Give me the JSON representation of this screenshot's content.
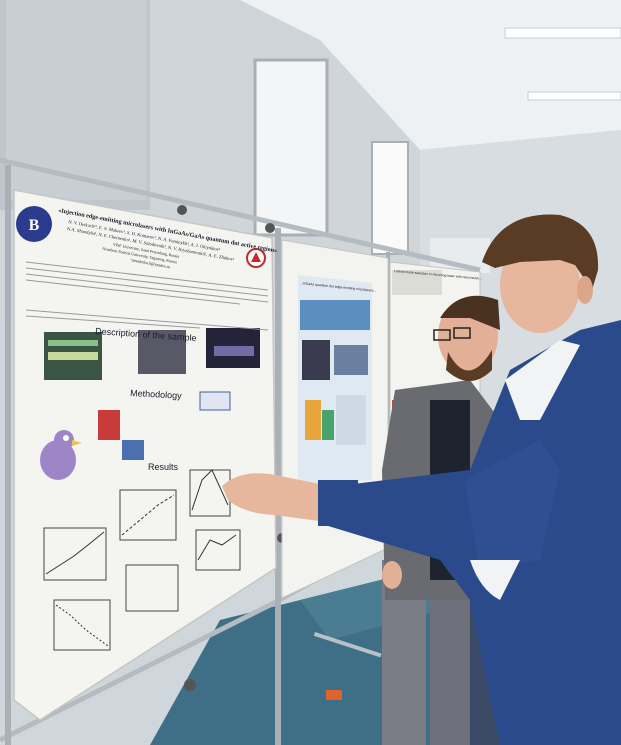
{
  "scene": {
    "colors": {
      "wall": "#d9dee2",
      "ceiling": "#eef1f3",
      "floor": "#3e6f86",
      "jacket": "#2b4a8c",
      "hair": "#5a3b24",
      "skin": "#e6b79c"
    }
  },
  "poster_main": {
    "title": "«Injection edge-emitting microlasers with InGaAs/GaAs quantum dot active region»",
    "authors_line1": "N. V. Derkach¹², E. S. Makeev¹, S. D. Komarov¹, N. A. Fominykh¹, A. I. Oleynikov¹",
    "authors_line2": "N.A. Shandyba¹, N. E. Chernenko¹, M. V. Solodovnik², N. V. Kryzhanovskii¹, A. E. Zhukov¹",
    "affil1": "¹HSE University, Saint Petersburg, Russia",
    "affil2": "²Southern Federal University, Taganrog, Russia",
    "email": "¹ninaderkach@yandex.ru",
    "section_description": "Description of the sample",
    "section_methodology": "Methodology",
    "section_results": "Results"
  },
  "poster_second": {
    "banner": "...InGaAs quantum dot edge-emitting microlasers..."
  },
  "poster_third": {
    "title": "Lateral mode selection in microring laser with noncircular..."
  }
}
